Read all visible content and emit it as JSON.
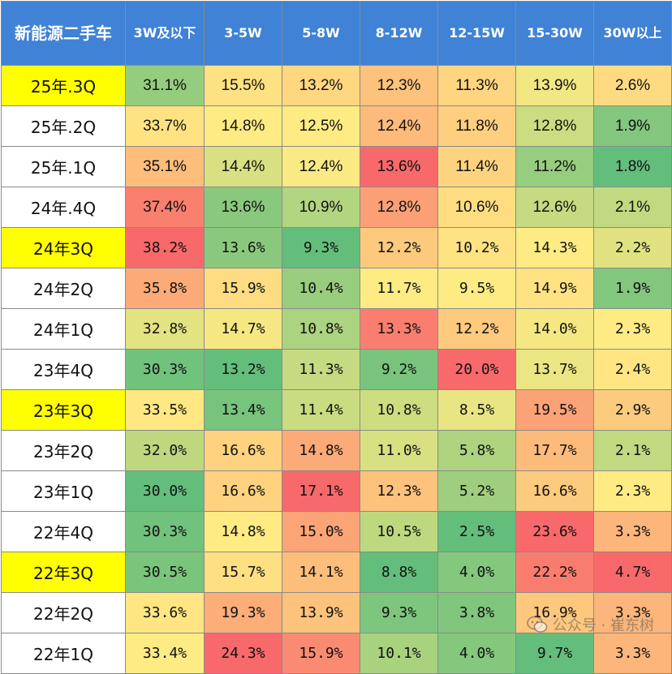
{
  "chart_data": {
    "type": "table",
    "corner_label": "新能源二手车",
    "columns": [
      "3W及以下",
      "3-5W",
      "5-8W",
      "8-12W",
      "12-15W",
      "15-30W",
      "30W以上"
    ],
    "rows": [
      {
        "label": "25年.3Q",
        "highlight": true,
        "fmt": "A",
        "values": [
          "31.1%",
          "15.5%",
          "13.2%",
          "12.3%",
          "11.3%",
          "13.9%",
          "2.6%"
        ]
      },
      {
        "label": "25年.2Q",
        "highlight": false,
        "fmt": "A",
        "values": [
          "33.7%",
          "14.8%",
          "12.5%",
          "12.4%",
          "11.8%",
          "12.8%",
          "1.9%"
        ]
      },
      {
        "label": "25年.1Q",
        "highlight": false,
        "fmt": "A",
        "values": [
          "35.1%",
          "14.4%",
          "12.4%",
          "13.6%",
          "11.4%",
          "11.2%",
          "1.8%"
        ]
      },
      {
        "label": "24年.4Q",
        "highlight": false,
        "fmt": "A",
        "values": [
          "37.4%",
          "13.6%",
          "10.9%",
          "12.8%",
          "10.6%",
          "12.6%",
          "2.1%"
        ]
      },
      {
        "label": "24年3Q",
        "highlight": true,
        "fmt": "B",
        "values": [
          "38.2%",
          "13.6%",
          "9.3%",
          "12.2%",
          "10.2%",
          "14.3%",
          "2.2%"
        ]
      },
      {
        "label": "24年2Q",
        "highlight": false,
        "fmt": "B",
        "values": [
          "35.8%",
          "15.9%",
          "10.4%",
          "11.7%",
          "9.5%",
          "14.9%",
          "1.9%"
        ]
      },
      {
        "label": "24年1Q",
        "highlight": false,
        "fmt": "B",
        "values": [
          "32.8%",
          "14.7%",
          "10.8%",
          "13.3%",
          "12.2%",
          "14.0%",
          "2.3%"
        ]
      },
      {
        "label": "23年4Q",
        "highlight": false,
        "fmt": "B",
        "values": [
          "30.3%",
          "13.2%",
          "11.3%",
          "9.2%",
          "20.0%",
          "13.7%",
          "2.4%"
        ]
      },
      {
        "label": "23年3Q",
        "highlight": true,
        "fmt": "B",
        "values": [
          "33.5%",
          "13.4%",
          "11.4%",
          "10.8%",
          "8.5%",
          "19.5%",
          "2.9%"
        ]
      },
      {
        "label": "23年2Q",
        "highlight": false,
        "fmt": "B",
        "values": [
          "32.0%",
          "16.6%",
          "14.8%",
          "11.0%",
          "5.8%",
          "17.7%",
          "2.1%"
        ]
      },
      {
        "label": "23年1Q",
        "highlight": false,
        "fmt": "B",
        "values": [
          "30.0%",
          "16.6%",
          "17.1%",
          "12.3%",
          "5.2%",
          "16.6%",
          "2.3%"
        ]
      },
      {
        "label": "22年4Q",
        "highlight": false,
        "fmt": "B",
        "values": [
          "30.3%",
          "14.8%",
          "15.0%",
          "10.5%",
          "2.5%",
          "23.6%",
          "3.3%"
        ]
      },
      {
        "label": "22年3Q",
        "highlight": true,
        "fmt": "B",
        "values": [
          "30.5%",
          "15.7%",
          "14.1%",
          "8.8%",
          "4.0%",
          "22.2%",
          "4.7%"
        ]
      },
      {
        "label": "22年2Q",
        "highlight": false,
        "fmt": "B",
        "values": [
          "33.6%",
          "19.3%",
          "13.9%",
          "9.3%",
          "3.8%",
          "16.9%",
          "3.3%"
        ]
      },
      {
        "label": "22年1Q",
        "highlight": false,
        "fmt": "B",
        "values": [
          "33.4%",
          "24.3%",
          "15.9%",
          "10.1%",
          "4.0%",
          "9.7%",
          "3.3%"
        ]
      }
    ],
    "colors": {
      "header_bg": "#3f82d6",
      "highlight_bg": "#ffff00",
      "scale_low": "#63be7b",
      "scale_mid": "#ffeb84",
      "scale_high": "#f8696b"
    }
  },
  "watermark": {
    "icon": "wechat-icon",
    "text": "公众号 · 崔东树"
  }
}
